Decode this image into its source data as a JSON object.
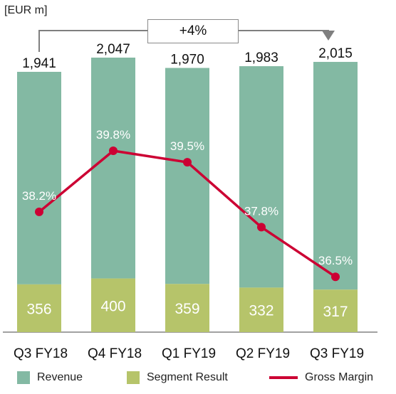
{
  "unit_label": "[EUR m]",
  "growth_label": "+4%",
  "chart_data": {
    "type": "bar",
    "categories": [
      "Q3 FY18",
      "Q4 FY18",
      "Q1 FY19",
      "Q2 FY19",
      "Q3 FY19"
    ],
    "series": [
      {
        "name": "Revenue",
        "values": [
          1941,
          2047,
          1970,
          1983,
          2015
        ],
        "labels": [
          "1,941",
          "2,047",
          "1,970",
          "1,983",
          "2,015"
        ]
      },
      {
        "name": "Segment Result",
        "values": [
          356,
          400,
          359,
          332,
          317
        ],
        "labels": [
          "356",
          "400",
          "359",
          "332",
          "317"
        ]
      },
      {
        "name": "Gross Margin",
        "type": "line",
        "values": [
          38.2,
          39.8,
          39.5,
          37.8,
          36.5
        ],
        "labels": [
          "38.2%",
          "39.8%",
          "39.5%",
          "37.8%",
          "36.5%"
        ]
      }
    ],
    "colors": {
      "revenue": "#83b9a3",
      "segment_result": "#b6c46a",
      "gross_margin": "#cc0033"
    },
    "legend_position": "bottom"
  }
}
